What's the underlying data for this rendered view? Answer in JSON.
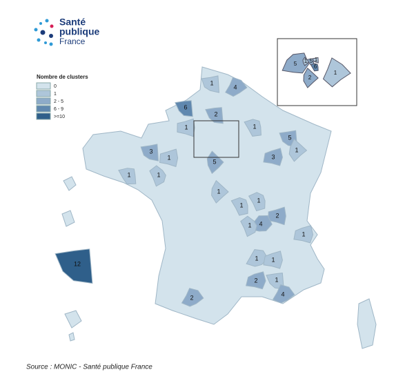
{
  "logo": {
    "line1": "Santé",
    "line2": "publique",
    "line3": "France"
  },
  "legend": {
    "title": "Nombre de clusters",
    "items": [
      {
        "label": "0",
        "color": "#d3e3ec"
      },
      {
        "label": "1",
        "color": "#aec6da"
      },
      {
        "label": "2 - 5",
        "color": "#8eabc9"
      },
      {
        "label": "6 - 9",
        "color": "#6088af"
      },
      {
        "label": ">=10",
        "color": "#2f5f8a"
      }
    ]
  },
  "departments": [
    {
      "label": 1,
      "color": "#aec6da"
    },
    {
      "label": 4,
      "color": "#8eabc9"
    },
    {
      "label": 6,
      "color": "#6088af"
    },
    {
      "label": 2,
      "color": "#8eabc9"
    },
    {
      "label": 1,
      "color": "#aec6da"
    },
    {
      "label": 1,
      "color": "#aec6da"
    },
    {
      "label": 5,
      "color": "#8eabc9"
    },
    {
      "label": 1,
      "color": "#aec6da"
    },
    {
      "label": 3,
      "color": "#8eabc9"
    },
    {
      "label": 5,
      "color": "#8eabc9"
    },
    {
      "label": 3,
      "color": "#8eabc9"
    },
    {
      "label": 1,
      "color": "#aec6da"
    },
    {
      "label": 1,
      "color": "#aec6da"
    },
    {
      "label": 1,
      "color": "#aec6da"
    },
    {
      "label": 1,
      "color": "#aec6da"
    },
    {
      "label": 1,
      "color": "#aec6da"
    },
    {
      "label": 1,
      "color": "#aec6da"
    },
    {
      "label": 2,
      "color": "#8eabc9"
    },
    {
      "label": 4,
      "color": "#8eabc9"
    },
    {
      "label": 1,
      "color": "#aec6da"
    },
    {
      "label": 1,
      "color": "#aec6da"
    },
    {
      "label": 1,
      "color": "#aec6da"
    },
    {
      "label": 1,
      "color": "#aec6da"
    },
    {
      "label": 2,
      "color": "#8eabc9"
    },
    {
      "label": 1,
      "color": "#aec6da"
    },
    {
      "label": 4,
      "color": "#8eabc9"
    },
    {
      "label": 2,
      "color": "#8eabc9"
    },
    {
      "label": 12,
      "color": "#2f5f8a"
    }
  ],
  "inset": [
    {
      "label": 5,
      "color": "#8eabc9"
    },
    {
      "label": 1,
      "color": "#aec6da"
    },
    {
      "label": 5,
      "color": "#8eabc9"
    },
    {
      "label": 1,
      "color": "#aec6da"
    },
    {
      "label": 6,
      "color": "#6088af"
    },
    {
      "label": 2,
      "color": "#8eabc9"
    },
    {
      "label": 1,
      "color": "#aec6da"
    }
  ],
  "source": "Source : MONIC - Santé publique France"
}
